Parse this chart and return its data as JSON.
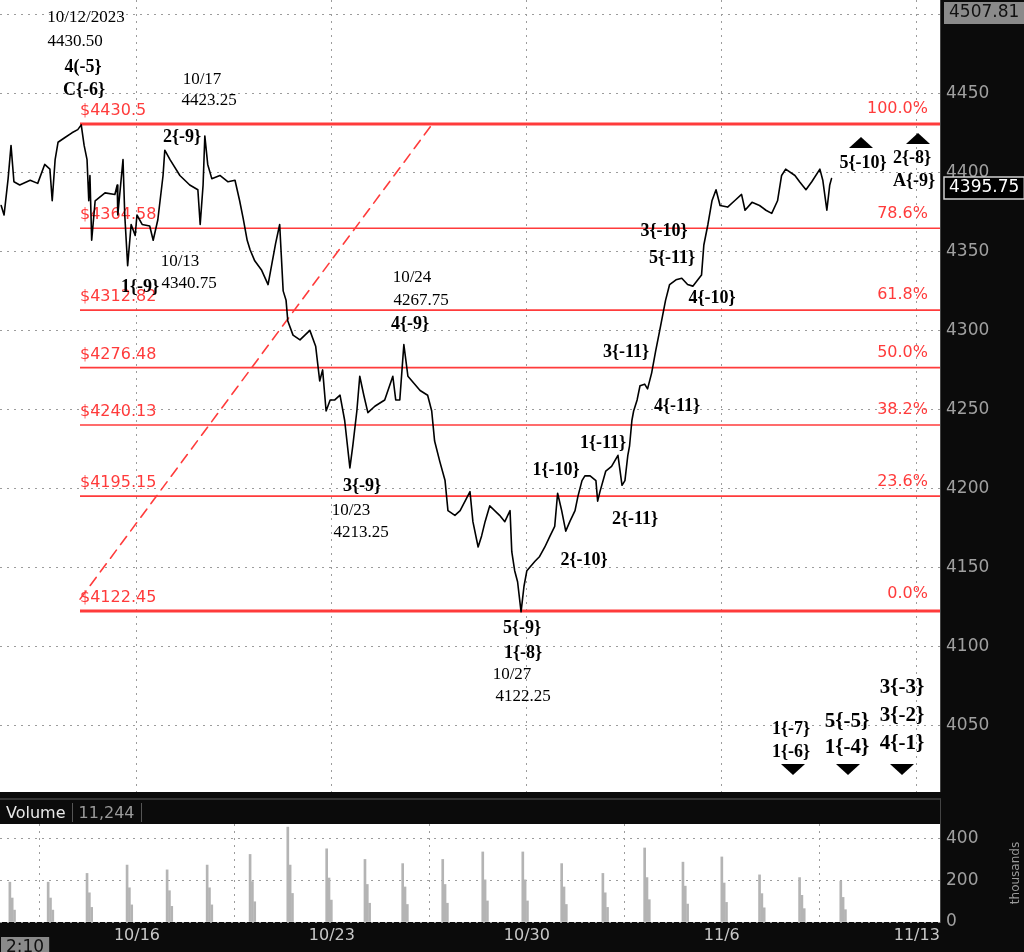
{
  "chart_data": [
    {
      "type": "line",
      "xlim": [
        "2023-10-11T02:00",
        "2023-11-13T20:00"
      ],
      "xticks": [
        {
          "value": "2023-10-16",
          "label": null
        },
        {
          "value": "2023-10-23",
          "label": null
        },
        {
          "value": "2023-10-30",
          "label": null
        },
        {
          "value": "2023-11-06",
          "label": null
        },
        {
          "value": "2023-11-13",
          "label": null
        }
      ],
      "tick_labels": "y",
      "ylim": [
        4008,
        4509
      ],
      "yticks": [
        4050,
        4100,
        4150,
        4200,
        4250,
        4300,
        4350,
        4400,
        4450,
        {
          "value": 4500,
          "label": null
        }
      ],
      "grid": true,
      "marker": "none",
      "series": [
        {
          "color": "#000000",
          "x": [
            "2023-10-11T03:00",
            "2023-10-11T05:30",
            "2023-10-11T09:00",
            "2023-10-11T11:30",
            "2023-10-11T14:00",
            "2023-10-11T19:00",
            "2023-10-12T04:00",
            "2023-10-12T10:30",
            "2023-10-12T16:30",
            "2023-10-12T21:00",
            "2023-10-12T23:00",
            "2023-10-13T01:30",
            "2023-10-13T04:00",
            "2023-10-13T10:00",
            "2023-10-13T16:00",
            "2023-10-13T21:00",
            "2023-10-14T00:00",
            "2023-10-14T02:30",
            "2023-10-14T05:00",
            "2023-10-14T06:30",
            "2023-10-14T07:30",
            "2023-10-14T09:00",
            "2023-10-14T12:00",
            "2023-10-14T20:30",
            "2023-10-15T05:00",
            "2023-10-15T07:00",
            "2023-10-15T07:30",
            "2023-10-15T12:00",
            "2023-10-15T13:30",
            "2023-10-15T16:00",
            "2023-10-15T19:00",
            "2023-10-15T22:30",
            "2023-10-16T00:00",
            "2023-10-16T04:30",
            "2023-10-16T11:00",
            "2023-10-16T14:00",
            "2023-10-16T18:00",
            "2023-10-16T22:30",
            "2023-10-17T00:00",
            "2023-10-17T04:30",
            "2023-10-17T13:00",
            "2023-10-17T21:30",
            "2023-10-18T04:30",
            "2023-10-18T06:30",
            "2023-10-18T09:00",
            "2023-10-18T10:30",
            "2023-10-18T13:00",
            "2023-10-18T16:30",
            "2023-10-18T23:30",
            "2023-10-19T06:30",
            "2023-10-19T12:30",
            "2023-10-19T16:30",
            "2023-10-19T19:30",
            "2023-10-19T23:00",
            "2023-10-20T01:30",
            "2023-10-20T05:30",
            "2023-10-20T11:30",
            "2023-10-20T17:00",
            "2023-10-20T20:30",
            "2023-10-20T23:30",
            "2023-10-21T03:00",
            "2023-10-21T06:00",
            "2023-10-21T08:30",
            "2023-10-21T10:00",
            "2023-10-21T14:30",
            "2023-10-21T20:30",
            "2023-10-22T05:00",
            "2023-10-22T10:00",
            "2023-10-22T13:30",
            "2023-10-22T16:00",
            "2023-10-22T19:00",
            "2023-10-22T22:30",
            "2023-10-23T02:30",
            "2023-10-23T07:00",
            "2023-10-23T11:00",
            "2023-10-23T15:30",
            "2023-10-23T18:00",
            "2023-10-23T21:30",
            "2023-10-24T00:00",
            "2023-10-24T03:30",
            "2023-10-24T07:00",
            "2023-10-24T13:00",
            "2023-10-24T21:30",
            "2023-10-25T04:30",
            "2023-10-25T07:00",
            "2023-10-25T10:30",
            "2023-10-25T14:00",
            "2023-10-25T17:30",
            "2023-10-25T21:00",
            "2023-10-26T04:00",
            "2023-10-26T10:30",
            "2023-10-26T14:00",
            "2023-10-26T16:30",
            "2023-10-26T21:00",
            "2023-10-27T01:30",
            "2023-10-27T04:00",
            "2023-10-27T10:00",
            "2023-10-27T14:30",
            "2023-10-27T23:00",
            "2023-10-28T01:30",
            "2023-10-28T06:00",
            "2023-10-28T09:00",
            "2023-10-28T12:00",
            "2023-10-28T16:00",
            "2023-10-29T00:30",
            "2023-10-29T05:00",
            "2023-10-29T09:30",
            "2023-10-29T11:00",
            "2023-10-29T13:30",
            "2023-10-29T16:00",
            "2023-10-29T19:00",
            "2023-10-29T21:30",
            "2023-10-30T00:00",
            "2023-10-30T07:00",
            "2023-10-30T11:00",
            "2023-10-30T15:30",
            "2023-10-30T20:00",
            "2023-10-31T00:00",
            "2023-10-31T02:30",
            "2023-10-31T06:00",
            "2023-10-31T09:30",
            "2023-10-31T13:00",
            "2023-10-31T17:30",
            "2023-10-31T20:00",
            "2023-10-31T23:30",
            "2023-11-01T02:00",
            "2023-11-01T06:30",
            "2023-11-01T11:30",
            "2023-11-01T13:00",
            "2023-11-01T15:00",
            "2023-11-01T20:00",
            "2023-11-02T01:00",
            "2023-11-02T06:30",
            "2023-11-02T10:00",
            "2023-11-02T12:30",
            "2023-11-02T15:00",
            "2023-11-02T16:30",
            "2023-11-02T18:30",
            "2023-11-02T20:00",
            "2023-11-02T23:00",
            "2023-11-03T01:30",
            "2023-11-03T05:30",
            "2023-11-03T08:00",
            "2023-11-03T11:30",
            "2023-11-03T15:00",
            "2023-11-03T18:30",
            "2023-11-03T23:30",
            "2023-11-04T03:00",
            "2023-11-04T08:30",
            "2023-11-04T13:30",
            "2023-11-04T18:30",
            "2023-11-04T23:00",
            "2023-11-05T06:30",
            "2023-11-05T08:30",
            "2023-11-05T12:00",
            "2023-11-05T15:30",
            "2023-11-05T19:00",
            "2023-11-05T22:30",
            "2023-11-06T05:00",
            "2023-11-06T11:00",
            "2023-11-06T17:00",
            "2023-11-06T20:00",
            "2023-11-07T02:00",
            "2023-11-07T08:30",
            "2023-11-07T14:00",
            "2023-11-07T19:00",
            "2023-11-08T00:00",
            "2023-11-08T03:30",
            "2023-11-08T07:00",
            "2023-11-08T15:00",
            "2023-11-08T19:00",
            "2023-11-09T00:30",
            "2023-11-09T05:30",
            "2023-11-09T12:30",
            "2023-11-09T15:00",
            "2023-11-09T18:30",
            "2023-11-09T21:00",
            "2023-11-09T22:30"
          ],
          "values": [
            4379,
            4373,
            4396,
            4417,
            4394,
            4392,
            4395,
            4393,
            4405,
            4402,
            4382,
            4408,
            4419,
            4422,
            4425,
            4427,
            4430,
            4417,
            4408,
            4382,
            4398,
            4357,
            4382,
            4387,
            4386,
            4392,
            4373,
            4408,
            4373,
            4341,
            4367,
            4360,
            4373,
            4367,
            4366,
            4357,
            4370,
            4398,
            4414,
            4408,
            4398,
            4392,
            4389,
            4367,
            4392,
            4423,
            4405,
            4396,
            4398,
            4394,
            4395,
            4382,
            4371,
            4357,
            4351,
            4344,
            4338,
            4329,
            4343,
            4355,
            4367,
            4325,
            4319,
            4306,
            4297,
            4294,
            4300,
            4290,
            4268,
            4275,
            4249,
            4256,
            4256,
            4259,
            4243,
            4213,
            4227,
            4249,
            4271,
            4259,
            4248,
            4252,
            4256,
            4271,
            4256,
            4256,
            4291,
            4271,
            4268,
            4262,
            4259,
            4249,
            4230,
            4217,
            4205,
            4186,
            4183,
            4186,
            4198,
            4179,
            4163,
            4170,
            4179,
            4189,
            4183,
            4179,
            4186,
            4160,
            4148,
            4141,
            4122,
            4138,
            4148,
            4154,
            4157,
            4163,
            4170,
            4176,
            4197,
            4186,
            4173,
            4179,
            4186,
            4195,
            4205,
            4208,
            4208,
            4205,
            4192,
            4198,
            4211,
            4214,
            4221,
            4202,
            4205,
            4221,
            4227,
            4243,
            4249,
            4256,
            4265,
            4266,
            4263,
            4273,
            4287,
            4300,
            4319,
            4329,
            4332,
            4333,
            4329,
            4328,
            4335,
            4354,
            4367,
            4382,
            4389,
            4379,
            4378,
            4382,
            4386,
            4376,
            4381,
            4379,
            4376,
            4374,
            4382,
            4398,
            4402,
            4398,
            4394,
            4389,
            4394,
            4402,
            4395,
            4376,
            4392,
            4396
          ]
        },
        {
          "color": "#ff3b3b",
          "line_style": "dashed",
          "x": [
            "2023-10-13T23:00",
            "2023-10-26T14:00"
          ],
          "values": [
            4130,
            4430
          ]
        }
      ],
      "ref_lines": [
        {
          "axis": "y",
          "value": 4430.5,
          "label": "$4430.5",
          "color": "#ff3b3b"
        },
        {
          "axis": "y",
          "value": 4364.58,
          "label": "$4364.58",
          "color": "#ff3b3b"
        },
        {
          "axis": "y",
          "value": 4312.82,
          "label": "$4312.82",
          "color": "#ff3b3b"
        },
        {
          "axis": "y",
          "value": 4276.48,
          "label": "$4276.48",
          "color": "#ff3b3b"
        },
        {
          "axis": "y",
          "value": 4240.13,
          "label": "$4240.13",
          "color": "#ff3b3b"
        },
        {
          "axis": "y",
          "value": 4195.15,
          "label": "$4195.15",
          "color": "#ff3b3b"
        },
        {
          "axis": "y",
          "value": 4122.45,
          "label": "$4122.45",
          "color": "#ff3b3b"
        }
      ],
      "annotations": [
        "10/12/2023",
        "4430.50",
        "4(-5}",
        "C{-6}",
        "10/17",
        "4423.25",
        "2{-9}",
        "1{-9}",
        "10/13",
        "4340.75",
        "10/24",
        "4267.75",
        "4{-9}",
        "3{-9}",
        "10/23",
        "4213.25",
        "5{-9}",
        "1{-8}",
        "10/27",
        "4122.25",
        "1{-10}",
        "2{-10}",
        "1{-11}",
        "2{-11}",
        "4{-11}",
        "3{-11}",
        "4{-10}",
        "3{-10}",
        "5{-11}",
        "5{-10}",
        "2{-8}",
        "A{-9}",
        "1{-7}",
        "1{-6}",
        "5{-5}",
        "1{-4}",
        "3{-3}",
        "3{-2}",
        "4{-1}",
        "100.0%",
        "78.6%",
        "61.8%",
        "50.0%",
        "38.2%",
        "23.6%",
        "0.0%",
        "4507.81",
        "4395.75"
      ]
    },
    {
      "type": "bar",
      "title": "Volume",
      "subtitle": "11,244",
      "ylabel": "thousands",
      "xlim": [
        "2023-10-11T02:00",
        "2023-11-13T20:00"
      ],
      "xticks": [
        {
          "value": "2023-10-16",
          "label": "10/16"
        },
        {
          "value": "2023-10-23",
          "label": "10/23"
        },
        {
          "value": "2023-10-30",
          "label": "10/30"
        },
        {
          "value": "2023-11-06",
          "label": "11/6"
        },
        {
          "value": "2023-11-13",
          "label": "11/13"
        }
      ],
      "ylim": [
        0,
        470
      ],
      "yticks": [
        0,
        200,
        400
      ],
      "grid": true,
      "color": "#b4b4b4",
      "x": [
        "2023-10-11T10:30",
        "2023-10-11T12:30",
        "2023-10-11T14:30",
        "2023-10-12T19:30",
        "2023-10-12T21:30",
        "2023-10-12T23:30",
        "2023-10-14T05:00",
        "2023-10-14T07:00",
        "2023-10-14T09:00",
        "2023-10-15T15:30",
        "2023-10-15T17:30",
        "2023-10-15T19:30",
        "2023-10-17T02:00",
        "2023-10-17T04:00",
        "2023-10-17T06:00",
        "2023-10-18T12:30",
        "2023-10-18T14:30",
        "2023-10-18T16:30",
        "2023-10-20T01:30",
        "2023-10-20T03:30",
        "2023-10-20T05:30",
        "2023-10-21T10:00",
        "2023-10-21T12:00",
        "2023-10-21T14:00",
        "2023-10-22T19:30",
        "2023-10-22T21:30",
        "2023-10-22T23:30",
        "2023-10-24T04:30",
        "2023-10-24T06:30",
        "2023-10-24T08:30",
        "2023-10-25T13:00",
        "2023-10-25T15:00",
        "2023-10-25T17:00",
        "2023-10-26T23:30",
        "2023-10-27T01:30",
        "2023-10-27T03:30",
        "2023-10-28T10:00",
        "2023-10-28T12:00",
        "2023-10-28T14:00",
        "2023-10-29T20:30",
        "2023-10-29T22:30",
        "2023-10-30T00:30",
        "2023-10-31T06:00",
        "2023-10-31T08:00",
        "2023-10-31T10:00",
        "2023-11-01T17:30",
        "2023-11-01T19:30",
        "2023-11-01T21:30",
        "2023-11-03T05:30",
        "2023-11-03T07:30",
        "2023-11-03T09:30",
        "2023-11-04T14:30",
        "2023-11-04T16:30",
        "2023-11-04T18:30",
        "2023-11-06T00:00",
        "2023-11-06T02:00",
        "2023-11-06T04:00",
        "2023-11-07T08:30",
        "2023-11-07T10:30",
        "2023-11-07T12:30",
        "2023-11-08T19:00",
        "2023-11-08T21:00",
        "2023-11-08T23:00",
        "2023-11-10T06:30",
        "2023-11-10T08:30",
        "2023-11-10T10:30"
      ],
      "values": [
        191,
        115,
        57,
        191,
        115,
        57,
        233,
        140,
        70,
        273,
        164,
        82,
        250,
        150,
        75,
        273,
        164,
        82,
        324,
        194,
        97,
        455,
        273,
        137,
        351,
        211,
        105,
        300,
        180,
        90,
        280,
        168,
        84,
        300,
        180,
        90,
        336,
        202,
        101,
        336,
        202,
        101,
        280,
        168,
        84,
        233,
        140,
        70,
        355,
        213,
        107,
        287,
        172,
        86,
        312,
        187,
        94,
        226,
        136,
        68,
        213,
        128,
        64,
        196,
        118,
        59
      ],
      "annotations": [
        "2:10"
      ]
    }
  ]
}
